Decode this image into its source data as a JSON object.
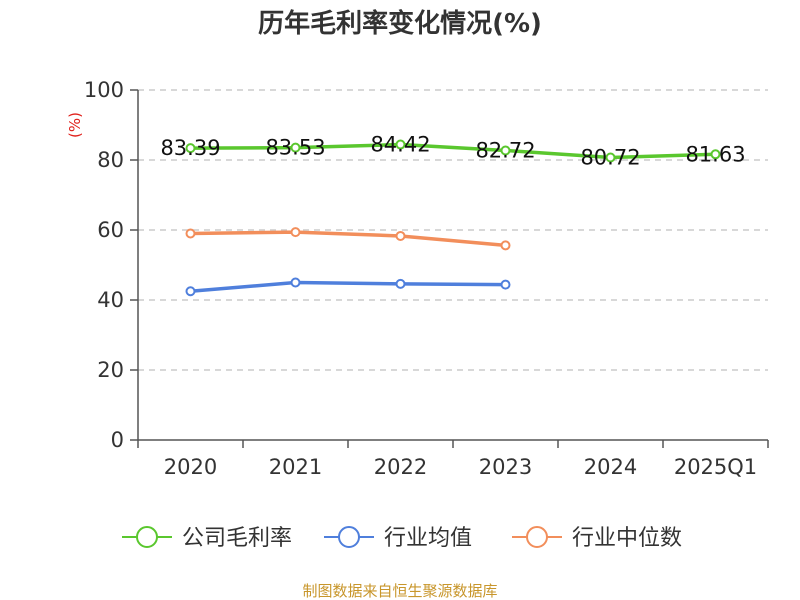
{
  "chart_data": {
    "type": "line",
    "title": "历年毛利率变化情况(%)",
    "unit_label": "(%)",
    "categories": [
      "2020",
      "2021",
      "2022",
      "2023",
      "2024",
      "2025Q1"
    ],
    "ylim": [
      0,
      100
    ],
    "yticks": [
      0,
      20,
      40,
      60,
      80,
      100
    ],
    "grid": true,
    "legend_position": "bottom",
    "series": [
      {
        "name": "公司毛利率",
        "color": "#5ac72e",
        "values": [
          83.39,
          83.53,
          84.42,
          82.72,
          80.72,
          81.63
        ],
        "data_labels": [
          "83.39",
          "83.53",
          "84.42",
          "82.72",
          "80.72",
          "81.63"
        ]
      },
      {
        "name": "行业均值",
        "color": "#4f7fdc",
        "values": [
          42.5,
          45.0,
          44.6,
          44.4,
          null,
          null
        ]
      },
      {
        "name": "行业中位数",
        "color": "#f28e5b",
        "values": [
          59.0,
          59.4,
          58.3,
          55.6,
          null,
          null
        ]
      }
    ],
    "source": "制图数据来自恒生聚源数据库",
    "colors": {
      "unit_label": "#e0201b",
      "source": "#c8962b",
      "axis": "#555555",
      "grid": "#cccccc"
    }
  }
}
